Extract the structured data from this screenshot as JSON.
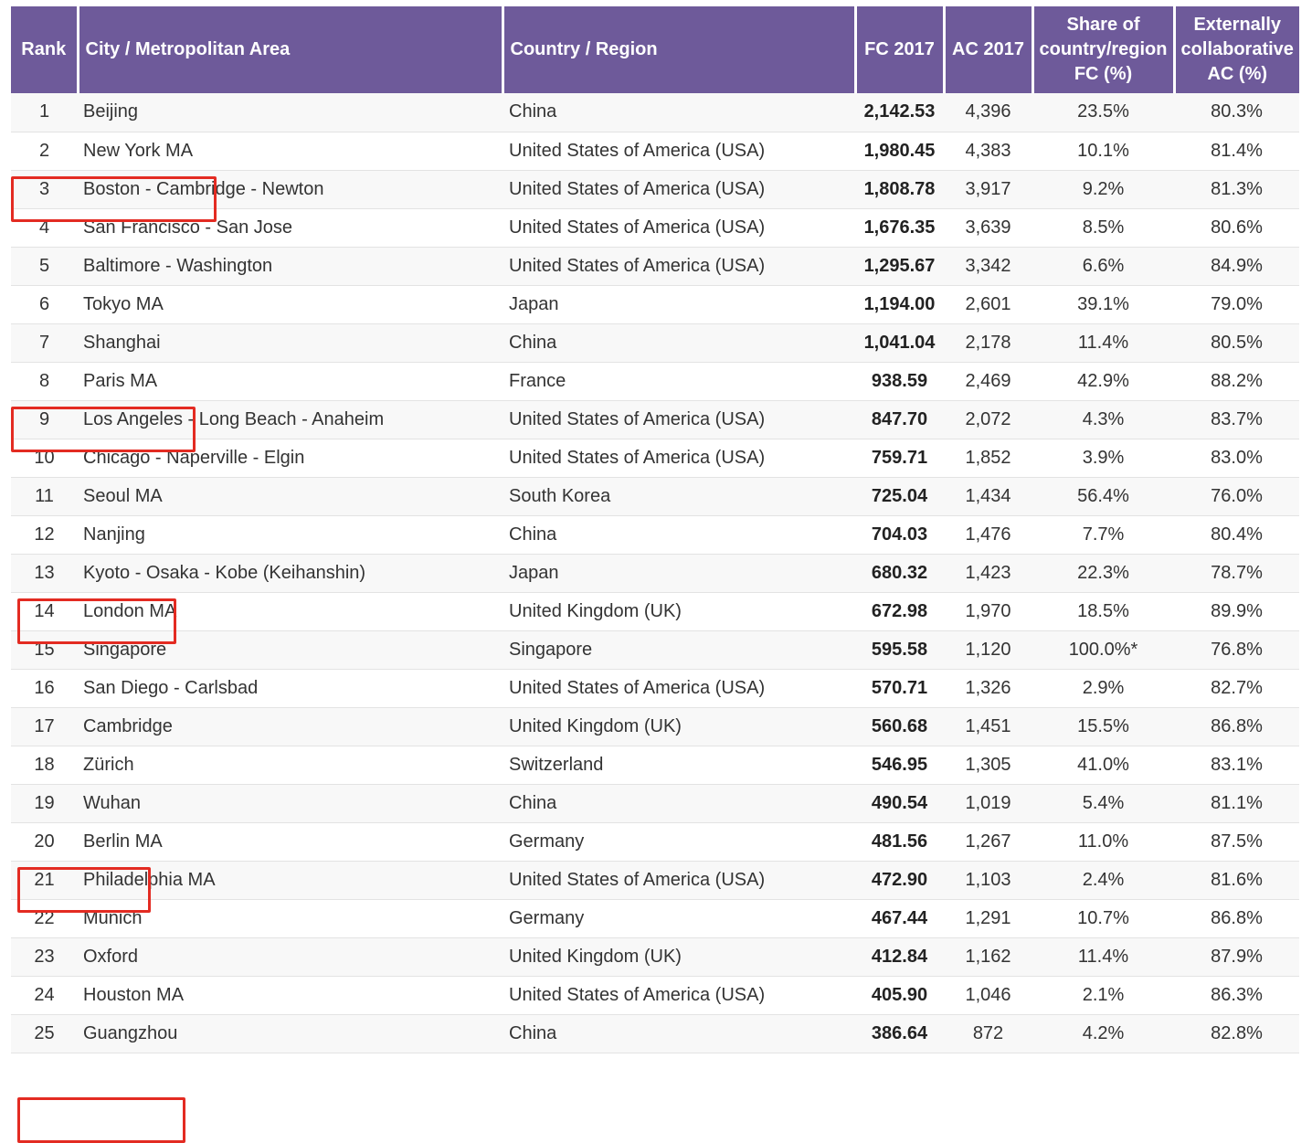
{
  "table": {
    "headers": {
      "rank": "Rank",
      "city": "City / Metropolitan Area",
      "country": "Country / Region",
      "fc": "FC 2017",
      "ac": "AC 2017",
      "share": [
        "Share of",
        "country/region",
        "FC (%)"
      ],
      "ext": [
        "Externally",
        "collaborative",
        "AC (%)"
      ]
    },
    "rows": [
      {
        "rank": "1",
        "city": "Beijing",
        "country": "China",
        "fc": "2,142.53",
        "ac": "4,396",
        "share": "23.5%",
        "ext": "80.3%"
      },
      {
        "rank": "2",
        "city": "New York MA",
        "country": "United States of America (USA)",
        "fc": "1,980.45",
        "ac": "4,383",
        "share": "10.1%",
        "ext": "81.4%"
      },
      {
        "rank": "3",
        "city": "Boston - Cambridge - Newton",
        "country": "United States of America (USA)",
        "fc": "1,808.78",
        "ac": "3,917",
        "share": "9.2%",
        "ext": "81.3%"
      },
      {
        "rank": "4",
        "city": "San Francisco - San Jose",
        "country": "United States of America (USA)",
        "fc": "1,676.35",
        "ac": "3,639",
        "share": "8.5%",
        "ext": "80.6%"
      },
      {
        "rank": "5",
        "city": "Baltimore - Washington",
        "country": "United States of America (USA)",
        "fc": "1,295.67",
        "ac": "3,342",
        "share": "6.6%",
        "ext": "84.9%"
      },
      {
        "rank": "6",
        "city": "Tokyo MA",
        "country": "Japan",
        "fc": "1,194.00",
        "ac": "2,601",
        "share": "39.1%",
        "ext": "79.0%"
      },
      {
        "rank": "7",
        "city": "Shanghai",
        "country": "China",
        "fc": "1,041.04",
        "ac": "2,178",
        "share": "11.4%",
        "ext": "80.5%"
      },
      {
        "rank": "8",
        "city": "Paris MA",
        "country": "France",
        "fc": "938.59",
        "ac": "2,469",
        "share": "42.9%",
        "ext": "88.2%"
      },
      {
        "rank": "9",
        "city": "Los Angeles - Long Beach - Anaheim",
        "country": "United States of America (USA)",
        "fc": "847.70",
        "ac": "2,072",
        "share": "4.3%",
        "ext": "83.7%"
      },
      {
        "rank": "10",
        "city": "Chicago - Naperville - Elgin",
        "country": "United States of America (USA)",
        "fc": "759.71",
        "ac": "1,852",
        "share": "3.9%",
        "ext": "83.0%"
      },
      {
        "rank": "11",
        "city": "Seoul MA",
        "country": "South Korea",
        "fc": "725.04",
        "ac": "1,434",
        "share": "56.4%",
        "ext": "76.0%"
      },
      {
        "rank": "12",
        "city": "Nanjing",
        "country": "China",
        "fc": "704.03",
        "ac": "1,476",
        "share": "7.7%",
        "ext": "80.4%"
      },
      {
        "rank": "13",
        "city": "Kyoto - Osaka - Kobe (Keihanshin)",
        "country": "Japan",
        "fc": "680.32",
        "ac": "1,423",
        "share": "22.3%",
        "ext": "78.7%"
      },
      {
        "rank": "14",
        "city": "London MA",
        "country": "United Kingdom (UK)",
        "fc": "672.98",
        "ac": "1,970",
        "share": "18.5%",
        "ext": "89.9%"
      },
      {
        "rank": "15",
        "city": "Singapore",
        "country": "Singapore",
        "fc": "595.58",
        "ac": "1,120",
        "share": "100.0%*",
        "ext": "76.8%"
      },
      {
        "rank": "16",
        "city": "San Diego - Carlsbad",
        "country": "United States of America (USA)",
        "fc": "570.71",
        "ac": "1,326",
        "share": "2.9%",
        "ext": "82.7%"
      },
      {
        "rank": "17",
        "city": "Cambridge",
        "country": "United Kingdom (UK)",
        "fc": "560.68",
        "ac": "1,451",
        "share": "15.5%",
        "ext": "86.8%"
      },
      {
        "rank": "18",
        "city": "Zürich",
        "country": "Switzerland",
        "fc": "546.95",
        "ac": "1,305",
        "share": "41.0%",
        "ext": "83.1%"
      },
      {
        "rank": "19",
        "city": "Wuhan",
        "country": "China",
        "fc": "490.54",
        "ac": "1,019",
        "share": "5.4%",
        "ext": "81.1%"
      },
      {
        "rank": "20",
        "city": "Berlin MA",
        "country": "Germany",
        "fc": "481.56",
        "ac": "1,267",
        "share": "11.0%",
        "ext": "87.5%"
      },
      {
        "rank": "21",
        "city": "Philadelphia MA",
        "country": "United States of America (USA)",
        "fc": "472.90",
        "ac": "1,103",
        "share": "2.4%",
        "ext": "81.6%"
      },
      {
        "rank": "22",
        "city": "Munich",
        "country": "Germany",
        "fc": "467.44",
        "ac": "1,291",
        "share": "10.7%",
        "ext": "86.8%"
      },
      {
        "rank": "23",
        "city": "Oxford",
        "country": "United Kingdom (UK)",
        "fc": "412.84",
        "ac": "1,162",
        "share": "11.4%",
        "ext": "87.9%"
      },
      {
        "rank": "24",
        "city": "Houston MA",
        "country": "United States of America (USA)",
        "fc": "405.90",
        "ac": "1,046",
        "share": "2.1%",
        "ext": "86.3%"
      },
      {
        "rank": "25",
        "city": "Guangzhou",
        "country": "China",
        "fc": "386.64",
        "ac": "872",
        "share": "4.2%",
        "ext": "82.8%"
      }
    ]
  },
  "highlighted_rows": [
    "1",
    "7",
    "12",
    "19",
    "25"
  ],
  "colors": {
    "header_bg": "#6e5a9a",
    "header_text": "#ffffff",
    "highlight_border": "#e32b22",
    "row_alt_bg": "#f8f8f8"
  }
}
